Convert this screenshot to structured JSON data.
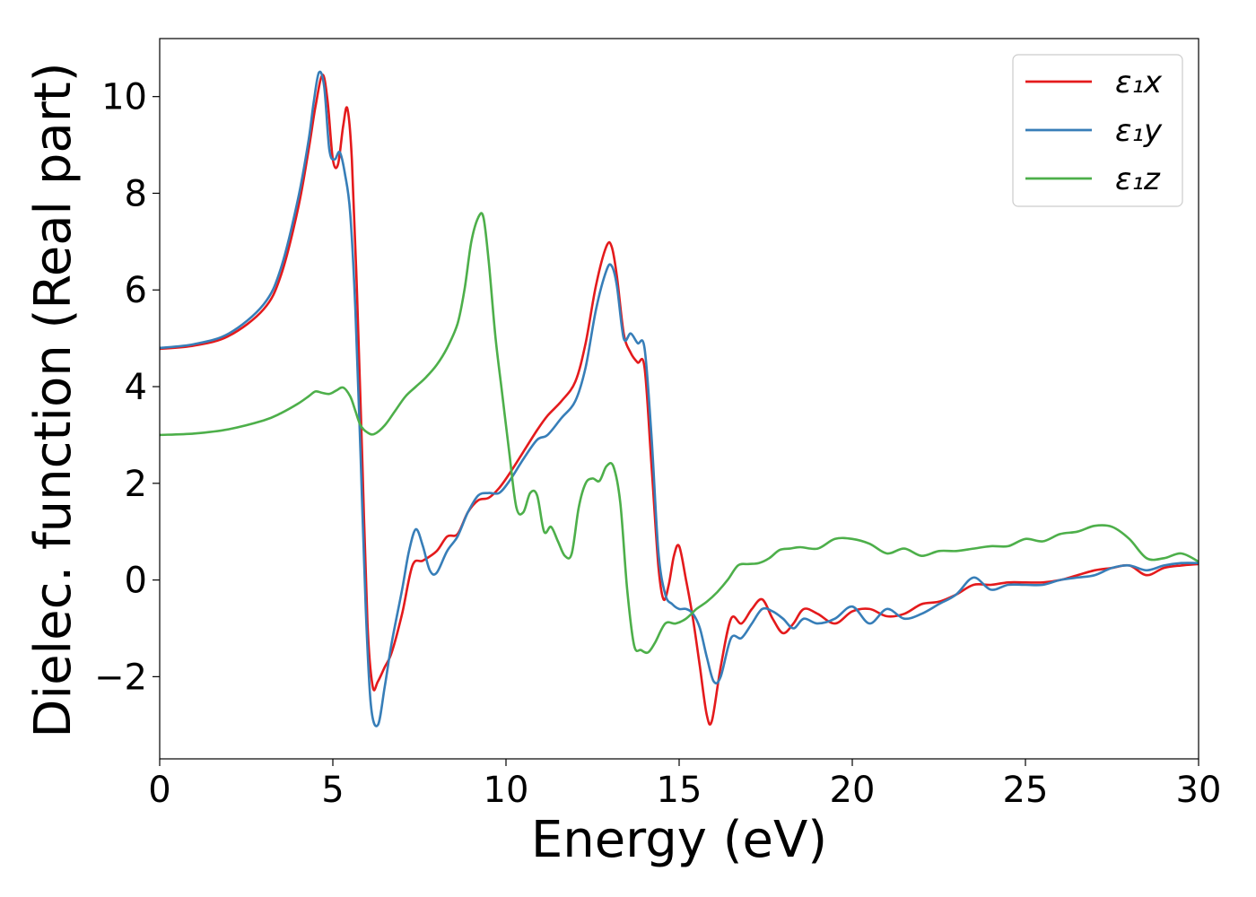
{
  "chart_data": {
    "type": "line",
    "xlabel": "Energy (eV)",
    "ylabel": "Dielec. function (Real part)",
    "xlim": [
      0,
      30
    ],
    "ylim": [
      -3.7,
      11.2
    ],
    "xticks": [
      0,
      5,
      10,
      15,
      20,
      25,
      30
    ],
    "xtick_labels": [
      "0",
      "5",
      "10",
      "15",
      "20",
      "25",
      "30"
    ],
    "yticks": [
      -2,
      0,
      2,
      4,
      6,
      8,
      10
    ],
    "ytick_labels": [
      "−2",
      "0",
      "2",
      "4",
      "6",
      "8",
      "10"
    ],
    "grid": false,
    "legend_position": "top-right",
    "series": [
      {
        "name": "ε₁x",
        "color": "#e41a1c",
        "x": [
          0,
          1,
          2,
          3,
          3.5,
          4,
          4.3,
          4.5,
          4.7,
          4.85,
          5.0,
          5.15,
          5.3,
          5.42,
          5.55,
          5.7,
          5.85,
          6.0,
          6.15,
          6.3,
          6.5,
          6.7,
          7.0,
          7.3,
          7.6,
          8.0,
          8.3,
          8.6,
          8.9,
          9.2,
          9.5,
          9.8,
          10.1,
          10.5,
          10.9,
          11.2,
          11.6,
          12.0,
          12.3,
          12.6,
          12.9,
          13.05,
          13.2,
          13.4,
          13.6,
          13.8,
          14.0,
          14.2,
          14.4,
          14.55,
          14.7,
          14.85,
          15.0,
          15.2,
          15.4,
          15.6,
          15.8,
          15.95,
          16.2,
          16.5,
          16.8,
          17.1,
          17.4,
          17.7,
          18.0,
          18.3,
          18.6,
          19.0,
          19.5,
          20.0,
          20.5,
          21.0,
          21.5,
          22.0,
          22.5,
          23.0,
          23.5,
          24.0,
          24.5,
          25.0,
          25.5,
          26.0,
          26.5,
          27.0,
          27.5,
          28.0,
          28.5,
          29.0,
          29.5,
          30.0
        ],
        "y": [
          4.78,
          4.85,
          5.05,
          5.6,
          6.3,
          7.7,
          8.9,
          9.8,
          10.45,
          9.9,
          8.7,
          8.6,
          9.4,
          9.75,
          8.7,
          5.9,
          2.5,
          -0.9,
          -2.2,
          -2.1,
          -1.8,
          -1.5,
          -0.7,
          0.3,
          0.4,
          0.6,
          0.9,
          0.95,
          1.4,
          1.65,
          1.7,
          1.9,
          2.2,
          2.65,
          3.1,
          3.4,
          3.7,
          4.1,
          4.9,
          6.1,
          6.9,
          6.9,
          6.3,
          5.1,
          4.7,
          4.5,
          4.4,
          2.4,
          0.3,
          -0.4,
          -0.1,
          0.5,
          0.7,
          0.0,
          -0.8,
          -1.8,
          -2.8,
          -2.9,
          -1.8,
          -0.8,
          -0.9,
          -0.6,
          -0.4,
          -0.8,
          -1.1,
          -0.9,
          -0.6,
          -0.7,
          -0.9,
          -0.65,
          -0.6,
          -0.75,
          -0.7,
          -0.5,
          -0.45,
          -0.3,
          -0.1,
          -0.1,
          -0.05,
          -0.05,
          -0.05,
          0.0,
          0.1,
          0.2,
          0.25,
          0.3,
          0.1,
          0.25,
          0.3,
          0.33
        ]
      },
      {
        "name": "ε₁y",
        "color": "#377eb8",
        "x": [
          0,
          1,
          2,
          3,
          3.5,
          4,
          4.3,
          4.45,
          4.6,
          4.75,
          4.9,
          5.05,
          5.2,
          5.35,
          5.5,
          5.65,
          5.8,
          5.95,
          6.1,
          6.3,
          6.5,
          6.7,
          7.0,
          7.2,
          7.4,
          7.6,
          7.8,
          8.0,
          8.3,
          8.6,
          8.9,
          9.2,
          9.5,
          9.8,
          10.1,
          10.5,
          10.9,
          11.2,
          11.6,
          12.0,
          12.3,
          12.6,
          12.9,
          13.05,
          13.2,
          13.4,
          13.6,
          13.8,
          14.0,
          14.2,
          14.4,
          14.6,
          14.8,
          15.0,
          15.2,
          15.4,
          15.6,
          15.8,
          16.0,
          16.2,
          16.5,
          16.8,
          17.1,
          17.4,
          17.7,
          18.0,
          18.3,
          18.6,
          19.0,
          19.5,
          20.0,
          20.5,
          21.0,
          21.5,
          22.0,
          22.5,
          23.0,
          23.5,
          24.0,
          24.5,
          25.0,
          25.5,
          26.0,
          26.5,
          27.0,
          27.5,
          28.0,
          28.5,
          29.0,
          29.5,
          30.0
        ],
        "y": [
          4.8,
          4.88,
          5.1,
          5.7,
          6.45,
          7.9,
          9.1,
          9.9,
          10.5,
          10.2,
          8.9,
          8.7,
          8.85,
          8.4,
          7.6,
          5.6,
          2.6,
          -0.6,
          -2.6,
          -3.0,
          -2.2,
          -1.3,
          -0.2,
          0.6,
          1.05,
          0.7,
          0.2,
          0.15,
          0.6,
          0.9,
          1.4,
          1.75,
          1.8,
          1.8,
          2.05,
          2.5,
          2.9,
          3.0,
          3.35,
          3.7,
          4.4,
          5.6,
          6.4,
          6.5,
          6.1,
          5.0,
          5.1,
          4.9,
          4.8,
          3.0,
          0.6,
          -0.3,
          -0.5,
          -0.6,
          -0.6,
          -0.7,
          -1.0,
          -1.6,
          -2.1,
          -2.0,
          -1.2,
          -1.2,
          -0.9,
          -0.6,
          -0.65,
          -0.8,
          -1.0,
          -0.8,
          -0.9,
          -0.8,
          -0.55,
          -0.9,
          -0.6,
          -0.8,
          -0.7,
          -0.5,
          -0.3,
          0.05,
          -0.2,
          -0.1,
          -0.1,
          -0.1,
          0.0,
          0.05,
          0.1,
          0.25,
          0.3,
          0.2,
          0.3,
          0.35,
          0.35
        ]
      },
      {
        "name": "ε₁z",
        "color": "#4daf4a",
        "x": [
          0,
          1,
          2,
          3,
          3.5,
          4,
          4.3,
          4.5,
          4.7,
          4.9,
          5.1,
          5.3,
          5.5,
          5.65,
          5.8,
          6.0,
          6.2,
          6.5,
          6.8,
          7.1,
          7.4,
          7.7,
          8.0,
          8.3,
          8.6,
          8.8,
          9.0,
          9.2,
          9.35,
          9.5,
          9.7,
          9.9,
          10.1,
          10.3,
          10.5,
          10.7,
          10.9,
          11.1,
          11.3,
          11.5,
          11.7,
          11.9,
          12.1,
          12.3,
          12.5,
          12.7,
          12.9,
          13.1,
          13.3,
          13.5,
          13.7,
          13.9,
          14.1,
          14.3,
          14.6,
          14.9,
          15.2,
          15.5,
          15.8,
          16.1,
          16.4,
          16.7,
          17.0,
          17.3,
          17.6,
          17.9,
          18.2,
          18.5,
          19.0,
          19.5,
          20.0,
          20.5,
          21.0,
          21.5,
          22.0,
          22.5,
          23.0,
          23.5,
          24.0,
          24.5,
          25.0,
          25.5,
          26.0,
          26.5,
          27.0,
          27.5,
          28.0,
          28.5,
          29.0,
          29.5,
          30.0
        ],
        "y": [
          3.0,
          3.03,
          3.12,
          3.3,
          3.45,
          3.65,
          3.8,
          3.9,
          3.87,
          3.85,
          3.92,
          3.98,
          3.8,
          3.5,
          3.2,
          3.05,
          3.02,
          3.2,
          3.5,
          3.8,
          4.0,
          4.2,
          4.45,
          4.8,
          5.3,
          6.0,
          7.0,
          7.5,
          7.5,
          6.6,
          5.0,
          3.8,
          2.6,
          1.5,
          1.4,
          1.8,
          1.75,
          1.0,
          1.1,
          0.8,
          0.5,
          0.55,
          1.5,
          2.0,
          2.1,
          2.05,
          2.35,
          2.35,
          1.6,
          -0.2,
          -1.35,
          -1.45,
          -1.5,
          -1.3,
          -0.9,
          -0.9,
          -0.8,
          -0.6,
          -0.45,
          -0.25,
          0.0,
          0.3,
          0.33,
          0.35,
          0.45,
          0.62,
          0.65,
          0.68,
          0.65,
          0.85,
          0.85,
          0.75,
          0.55,
          0.65,
          0.5,
          0.6,
          0.6,
          0.65,
          0.7,
          0.7,
          0.85,
          0.8,
          0.95,
          1.0,
          1.12,
          1.1,
          0.85,
          0.45,
          0.45,
          0.55,
          0.38
        ]
      }
    ]
  }
}
